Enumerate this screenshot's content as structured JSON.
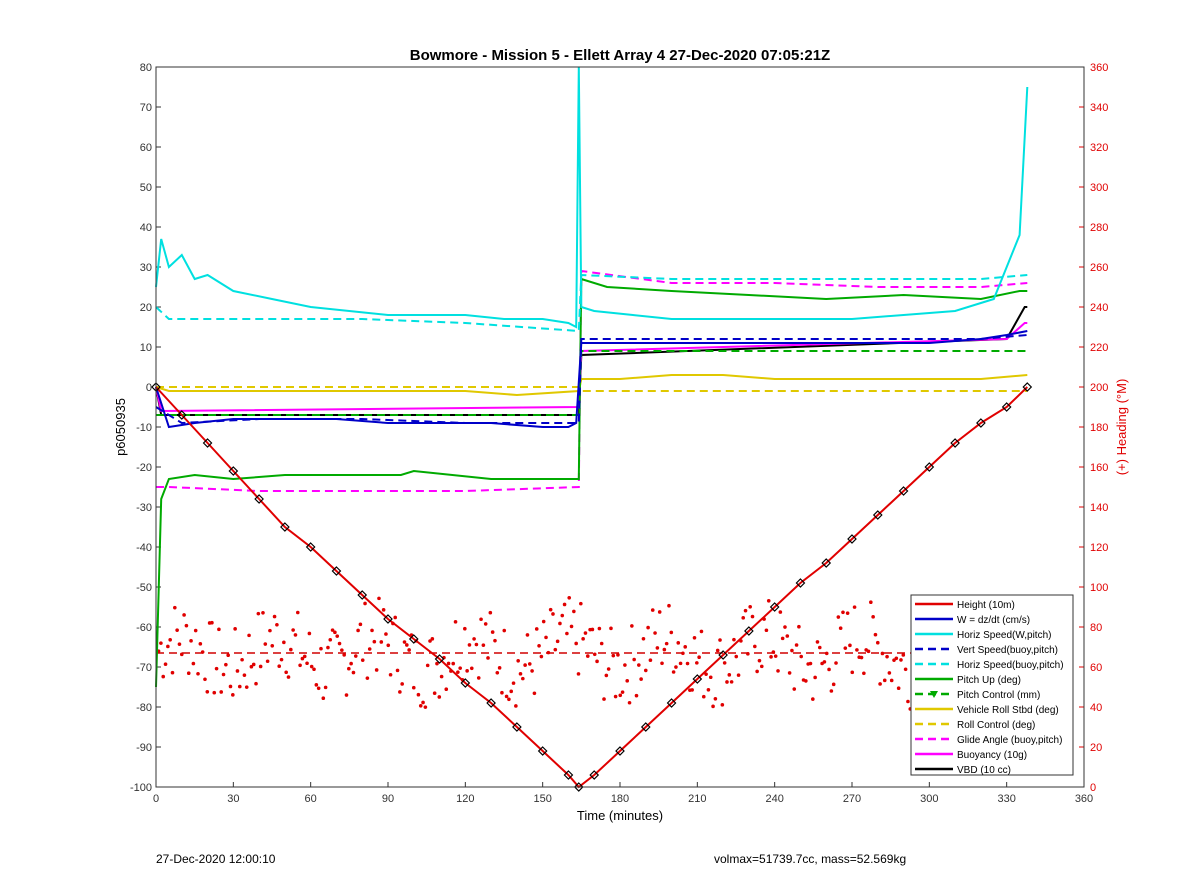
{
  "chart_data": {
    "type": "line",
    "title": "Bowmore - Mission 5 - Ellett Array 4 27-Dec-2020 07:05:21Z",
    "xlabel": "Time (minutes)",
    "ylabel": "p6050935",
    "y2label": "(+) Heading (°M)",
    "xlim": [
      0,
      360
    ],
    "ylim": [
      -100,
      80
    ],
    "y2lim": [
      0,
      360
    ],
    "xticks": [
      0,
      30,
      60,
      90,
      120,
      150,
      180,
      210,
      240,
      270,
      300,
      330,
      360
    ],
    "yticks": [
      -100,
      -90,
      -80,
      -70,
      -60,
      -50,
      -40,
      -30,
      -20,
      -10,
      0,
      10,
      20,
      30,
      40,
      50,
      60,
      70,
      80
    ],
    "y2ticks": [
      0,
      20,
      40,
      60,
      80,
      100,
      120,
      140,
      160,
      180,
      200,
      220,
      240,
      260,
      280,
      300,
      320,
      340,
      360
    ],
    "grid": false,
    "legend_position": "lower-right",
    "heading_reference": 67,
    "series": [
      {
        "name": "Height (10m)",
        "color": "#e00000",
        "style": "solid",
        "x": [
          0,
          10,
          20,
          30,
          40,
          50,
          60,
          70,
          80,
          90,
          100,
          110,
          120,
          130,
          140,
          150,
          160,
          164,
          170,
          180,
          190,
          200,
          210,
          220,
          230,
          240,
          250,
          260,
          270,
          280,
          290,
          300,
          310,
          320,
          330,
          338
        ],
        "y": [
          0,
          -7,
          -14,
          -21,
          -28,
          -35,
          -40,
          -46,
          -52,
          -58,
          -63,
          -68,
          -74,
          -79,
          -85,
          -91,
          -97,
          -100,
          -97,
          -91,
          -85,
          -79,
          -73,
          -67,
          -61,
          -55,
          -49,
          -44,
          -38,
          -32,
          -26,
          -20,
          -14,
          -9,
          -5,
          0
        ]
      },
      {
        "name": "W = dz/dt (cm/s)",
        "color": "#0000c8",
        "style": "solid",
        "x": [
          0,
          5,
          15,
          30,
          50,
          70,
          90,
          110,
          130,
          150,
          160,
          163,
          165,
          175,
          195,
          215,
          240,
          270,
          300,
          320,
          330,
          338
        ],
        "y": [
          0,
          -10,
          -9,
          -8,
          -8,
          -8,
          -9,
          -9,
          -9,
          -10,
          -10,
          -9,
          11,
          11,
          11,
          11,
          11,
          11,
          11,
          12,
          13,
          14
        ]
      },
      {
        "name": "Horiz Speed(W,pitch)",
        "color": "#00e0e0",
        "style": "solid",
        "x": [
          0,
          2,
          5,
          10,
          15,
          20,
          30,
          45,
          60,
          75,
          90,
          105,
          120,
          135,
          150,
          160,
          163,
          164,
          165,
          170,
          185,
          200,
          215,
          230,
          250,
          270,
          290,
          310,
          325,
          335,
          338
        ],
        "y": [
          25,
          37,
          30,
          33,
          27,
          28,
          24,
          22,
          20,
          19,
          18,
          18,
          18,
          17,
          17,
          16,
          15,
          80,
          20,
          19,
          18,
          17,
          17,
          17,
          17,
          17,
          18,
          19,
          22,
          38,
          75
        ]
      },
      {
        "name": "Vert Speed(buoy,pitch)",
        "color": "#0000c8",
        "style": "dash",
        "x": [
          0,
          10,
          40,
          80,
          120,
          164,
          165,
          200,
          240,
          280,
          320,
          338
        ],
        "y": [
          -5,
          -9,
          -8,
          -8,
          -9,
          -9,
          12,
          12,
          12,
          12,
          12,
          13
        ]
      },
      {
        "name": "Horiz Speed(buoy,pitch)",
        "color": "#00e0e0",
        "style": "dash",
        "x": [
          0,
          5,
          40,
          80,
          120,
          164,
          165,
          200,
          240,
          280,
          320,
          338
        ],
        "y": [
          20,
          17,
          17,
          17,
          16,
          14,
          28,
          27,
          27,
          27,
          27,
          28
        ]
      },
      {
        "name": "Pitch Up (deg)",
        "color": "#00aa00",
        "style": "solid",
        "x": [
          0,
          2,
          5,
          15,
          30,
          50,
          70,
          95,
          100,
          130,
          164,
          165,
          175,
          200,
          230,
          260,
          290,
          320,
          335,
          338
        ],
        "y": [
          -75,
          -28,
          -23,
          -22,
          -23,
          -22,
          -22,
          -22,
          -21,
          -23,
          -23,
          27,
          25,
          24,
          23,
          22,
          23,
          22,
          24,
          24
        ]
      },
      {
        "name": "Pitch Control (mm)",
        "color": "#00aa00",
        "style": "dash-dot-marker",
        "x": [
          0,
          164,
          165,
          338
        ],
        "y": [
          -7,
          -7,
          9,
          9
        ]
      },
      {
        "name": "Vehicle Roll Stbd (deg)",
        "color": "#e0c800",
        "style": "solid",
        "x": [
          0,
          5,
          20,
          40,
          60,
          80,
          100,
          120,
          140,
          164,
          165,
          180,
          200,
          220,
          240,
          260,
          280,
          300,
          320,
          338
        ],
        "y": [
          0,
          -1,
          -1,
          -1,
          -1,
          -1,
          -1,
          -1,
          -2,
          -1,
          2,
          2,
          3,
          3,
          2,
          2,
          2,
          2,
          2,
          3
        ]
      },
      {
        "name": "Roll Control (deg)",
        "color": "#e0c800",
        "style": "dash",
        "x": [
          0,
          164,
          165,
          338
        ],
        "y": [
          0,
          0,
          -1,
          -1
        ]
      },
      {
        "name": "Glide Angle (buoy,pitch)",
        "color": "#ff00ff",
        "style": "dash",
        "x": [
          0,
          5,
          40,
          80,
          120,
          164,
          165,
          200,
          240,
          280,
          320,
          338
        ],
        "y": [
          -25,
          -25,
          -26,
          -26,
          -26,
          -25,
          29,
          26,
          26,
          25,
          25,
          26
        ]
      },
      {
        "name": "Buoyancy (10g)",
        "color": "#ff00ff",
        "style": "solid",
        "x": [
          0,
          2,
          164,
          165,
          330,
          337,
          338
        ],
        "y": [
          0,
          -6,
          -5,
          9,
          12,
          16,
          16
        ]
      },
      {
        "name": "VBD (10 cc)",
        "color": "#000000",
        "style": "solid",
        "x": [
          0,
          2,
          164,
          165,
          330,
          337,
          338
        ],
        "y": [
          0,
          -7,
          -7,
          8,
          12,
          20,
          20
        ]
      }
    ]
  },
  "footer": {
    "timestamp": "27-Dec-2020 12:00:10",
    "summary": "volmax=51739.7cc, mass=52.569kg"
  }
}
